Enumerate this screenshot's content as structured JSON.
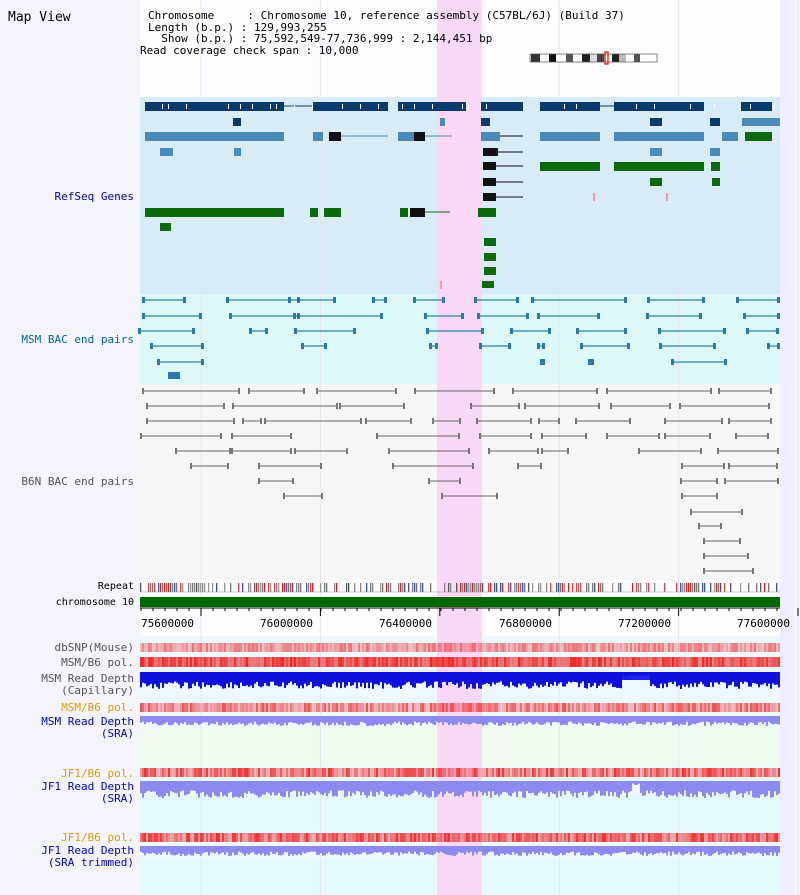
{
  "title": "Map View",
  "info": {
    "chromosome": "Chromosome     : Chromosome 10, reference assembly (C57BL/6J) (Build 37)",
    "length": "Length (b.p.) : 129,993,255",
    "show": "  Show (b.p.) : 75,592,549-77,736,999 : 2,144,451 bp",
    "read_span": "Read coverage check span : 10,000"
  },
  "tracks": {
    "refseq": {
      "label": "RefSeq Genes",
      "color": "#0000aa"
    },
    "msm_bac": {
      "label": "MSM BAC end pairs",
      "color": "#006699"
    },
    "b6n_bac": {
      "label": "B6N BAC end pairs",
      "color": "#555555"
    },
    "repeat": {
      "label": "Repeat"
    },
    "chromosome": {
      "label": "chromosome 10"
    },
    "dbsnp": {
      "label": "dbSNP(Mouse)",
      "color": "#555555"
    },
    "msm_pol1": {
      "label": "MSM/B6 pol.",
      "color": "#555555"
    },
    "msm_depth_cap": {
      "label1": "MSM Read Depth",
      "label2": "(Capillary)",
      "color": "#555555"
    },
    "msm_pol2": {
      "label": "MSM/B6 pol.",
      "color": "#e39b00"
    },
    "msm_depth_sra": {
      "label1": "MSM Read Depth",
      "label2": "(SRA)",
      "color": "#0000cc"
    },
    "jf1_pol1": {
      "label": "JF1/B6 pol.",
      "color": "#e39b00"
    },
    "jf1_depth_sra": {
      "label1": "JF1 Read Depth",
      "label2": "(SRA)",
      "color": "#0000cc"
    },
    "jf1_pol2": {
      "label": "JF1/B6 pol.",
      "color": "#e39b00"
    },
    "jf1_depth_trim": {
      "label1": "JF1 Read Depth",
      "label2": "(SRA trimmed)",
      "color": "#0000cc"
    }
  },
  "axis": {
    "ticks": [
      "75600000",
      "76000000",
      "76400000",
      "76800000",
      "77200000",
      "77600000"
    ]
  },
  "colors": {
    "highlight": "#f8d8f4",
    "refseq_bg": "#d8ecf8",
    "msm_bg": "#dcf8f8",
    "chromosome_bar": "#006600",
    "gene_dark": "#0b3a6e",
    "gene_mid": "#4a8ab8",
    "gene_green": "#0c6a0c",
    "depth_msm": "#1010dd",
    "depth_sra": "#8a8af0"
  }
}
